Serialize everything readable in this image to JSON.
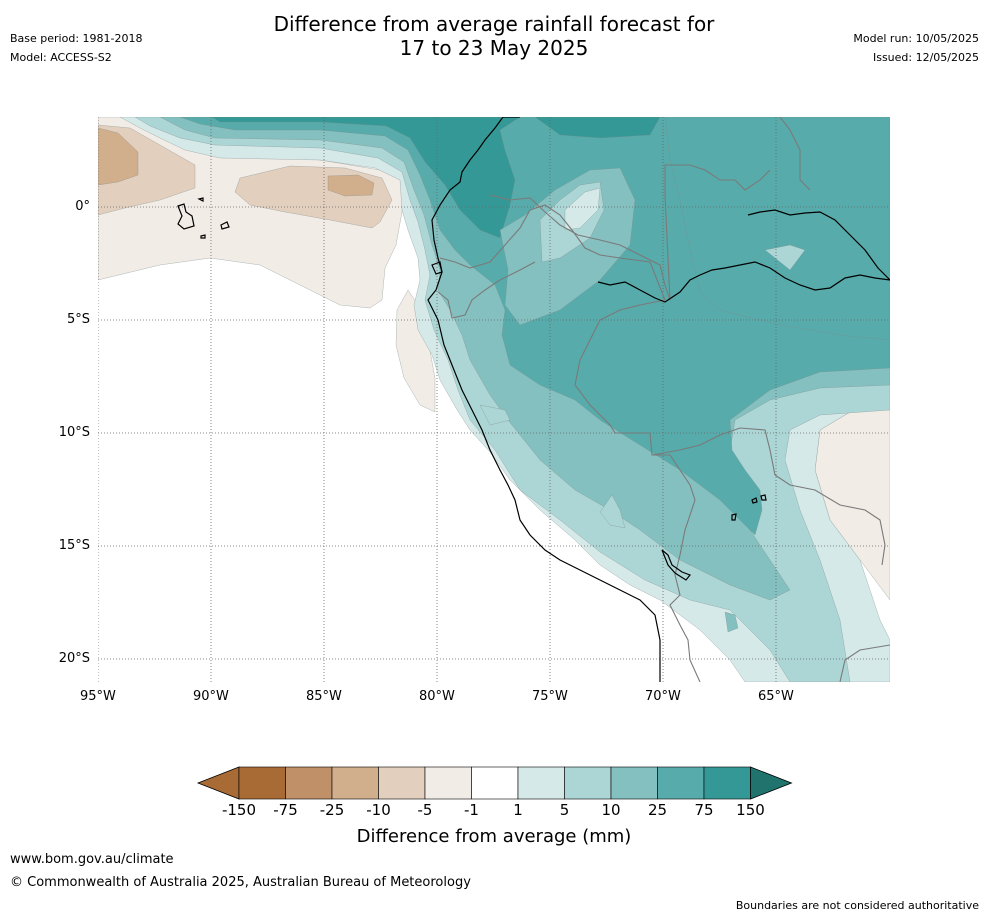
{
  "header": {
    "title_line1": "Difference from average rainfall forecast for",
    "title_line2": "17 to 23 May 2025",
    "base_period": "Base period: 1981-2018",
    "model": "Model: ACCESS-S2",
    "model_run": "Model run: 10/05/2025",
    "issued": "Issued: 12/05/2025"
  },
  "map": {
    "lat_labels": [
      "0°",
      "5°S",
      "10°S",
      "15°S",
      "20°S"
    ],
    "lon_labels": [
      "95°W",
      "90°W",
      "85°W",
      "80°W",
      "75°W",
      "70°W",
      "65°W"
    ],
    "colors": {
      "c_neg150": "#a86b35",
      "c_neg75": "#c09068",
      "c_neg25": "#d1ae8c",
      "c_neg10": "#e3cfbd",
      "c_neg5": "#f2ece6",
      "c_zero": "#ffffff",
      "c_1": "#d5e9e8",
      "c_5": "#acd6d5",
      "c_10": "#84c0bf",
      "c_25": "#58abab",
      "c_75": "#349996",
      "c_150": "#21736e"
    }
  },
  "colorbar": {
    "tick_labels": [
      "-150",
      "-75",
      "-25",
      "-10",
      "-5",
      "-1",
      "1",
      "5",
      "10",
      "25",
      "75",
      "150"
    ],
    "title": "Difference from average (mm)"
  },
  "footer": {
    "url": "www.bom.gov.au/climate",
    "copyright": "© Commonwealth of Australia 2025, Australian Bureau of Meteorology",
    "note": "Boundaries are not considered authoritative"
  }
}
